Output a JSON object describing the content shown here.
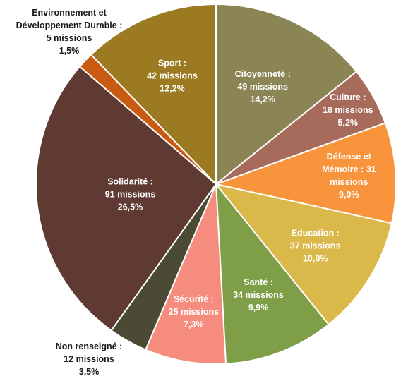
{
  "chart_data": {
    "type": "pie",
    "title": "",
    "unit": "missions",
    "slices": [
      {
        "label_lines": [
          "Citoyenneté :",
          "49 missions",
          "14,2%"
        ],
        "name": "Citoyenneté",
        "missions": 49,
        "percent": 14.2,
        "color": "#8B8455"
      },
      {
        "label_lines": [
          "Culture :",
          "18 missions",
          "5,2%"
        ],
        "name": "Culture",
        "missions": 18,
        "percent": 5.2,
        "color": "#A66B5B"
      },
      {
        "label_lines": [
          "Défense et",
          "Mémoire : 31",
          "missions",
          "9,0%"
        ],
        "name": "Défense et Mémoire",
        "missions": 31,
        "percent": 9.0,
        "color": "#F7943C"
      },
      {
        "label_lines": [
          "Education :",
          "37 missions",
          "10,8%"
        ],
        "name": "Education",
        "missions": 37,
        "percent": 10.8,
        "color": "#DBB84A"
      },
      {
        "label_lines": [
          "Santé :",
          "34 missions",
          "9,9%"
        ],
        "name": "Santé",
        "missions": 34,
        "percent": 9.9,
        "color": "#7E9E48"
      },
      {
        "label_lines": [
          "Sécurité :",
          "25 missions",
          "7,3%"
        ],
        "name": "Sécurité",
        "missions": 25,
        "percent": 7.3,
        "color": "#F58C7D"
      },
      {
        "label_lines": [
          "Non renseigné :",
          "12 missions",
          "3,5%"
        ],
        "name": "Non renseigné",
        "missions": 12,
        "percent": 3.5,
        "color": "#4A4A35"
      },
      {
        "label_lines": [
          "Solidarité :",
          "91 missions",
          "26,5%"
        ],
        "name": "Solidarité",
        "missions": 91,
        "percent": 26.5,
        "color": "#5E3A32"
      },
      {
        "label_lines": [
          "Environnement et",
          "Développement Durable :",
          "5 missions",
          "1,5%"
        ],
        "name": "Environnement et Développement Durable",
        "missions": 5,
        "percent": 1.5,
        "color": "#C85A12"
      },
      {
        "label_lines": [
          "Sport :",
          "42 missions",
          "12,2%"
        ],
        "name": "Sport",
        "missions": 42,
        "percent": 12.2,
        "color": "#9B7A22"
      }
    ]
  }
}
